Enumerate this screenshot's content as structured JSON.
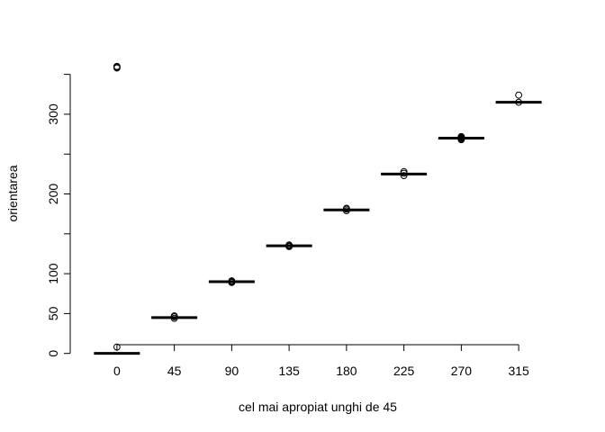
{
  "chart_data": {
    "type": "boxplot",
    "title": "",
    "xlabel": "cel mai apropiat unghi de 45",
    "ylabel": "orientarea",
    "categories": [
      "0",
      "45",
      "90",
      "135",
      "180",
      "225",
      "270",
      "315"
    ],
    "yticks": [
      0,
      50,
      100,
      200,
      300
    ],
    "ylim": [
      -6,
      362
    ],
    "medians": [
      0,
      45,
      90,
      135,
      180,
      225,
      270,
      315
    ],
    "outliers": [
      [
        8,
        358,
        359,
        360
      ],
      [
        44,
        46,
        47
      ],
      [
        89,
        90,
        91
      ],
      [
        134,
        135,
        136
      ],
      [
        179,
        181,
        182
      ],
      [
        223,
        226,
        228
      ],
      [
        268,
        269,
        270,
        271,
        272
      ],
      [
        315,
        324
      ]
    ],
    "grid": false,
    "legend": "none"
  }
}
